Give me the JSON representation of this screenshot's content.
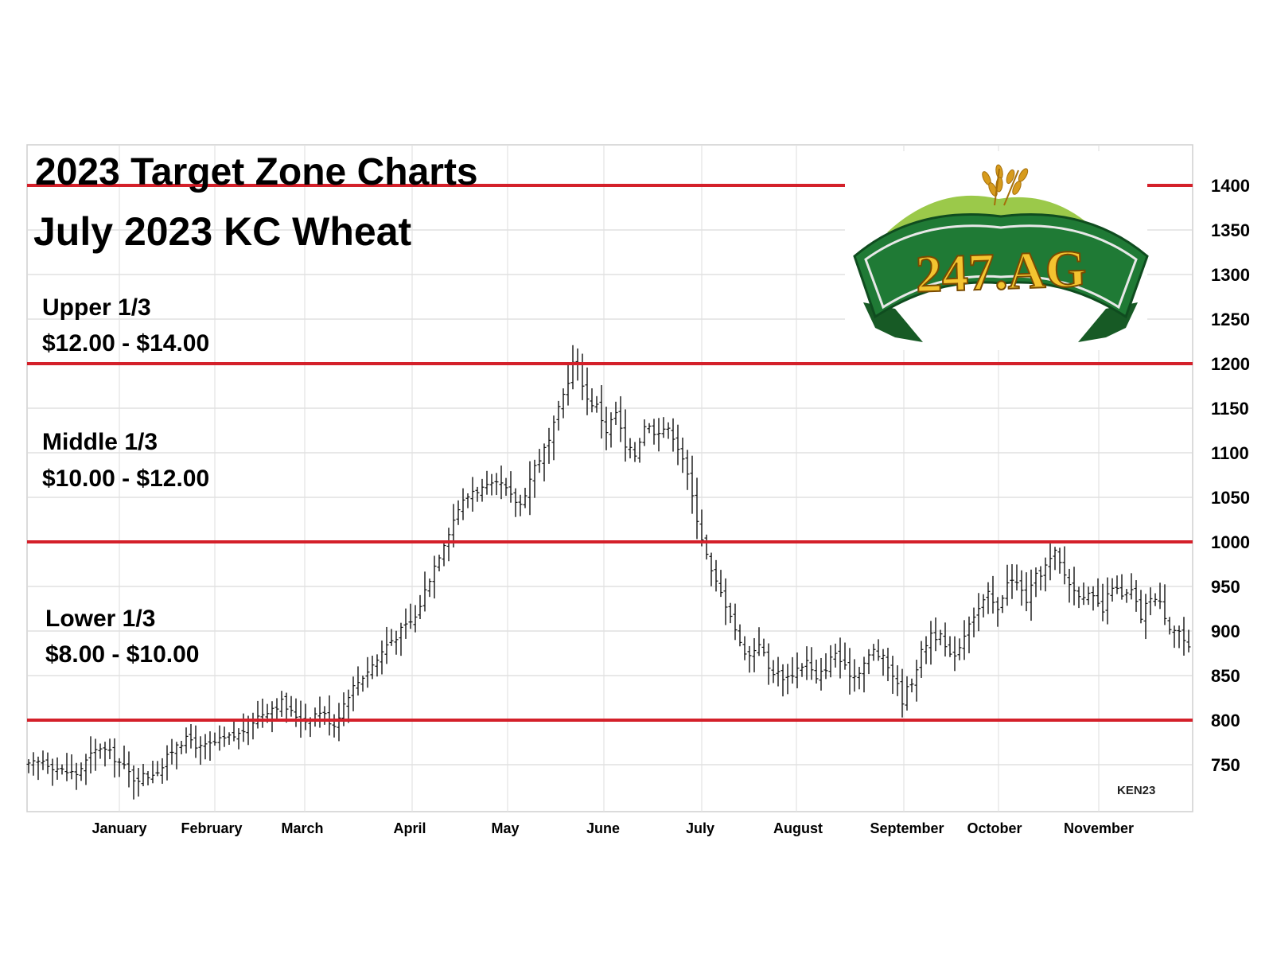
{
  "chart_data": {
    "type": "ohlc",
    "title": "2023 Target Zone Charts",
    "subtitle": "July 2023 KC Wheat",
    "ylim": [
      700,
      1470
    ],
    "yticks": [
      750,
      800,
      850,
      900,
      950,
      1000,
      1050,
      1100,
      1150,
      1200,
      1250,
      1300,
      1350,
      1400
    ],
    "x_months": [
      "January",
      "February",
      "March",
      "April",
      "May",
      "June",
      "July",
      "August",
      "September",
      "October",
      "November"
    ],
    "grid": true,
    "zone_lines": [
      800,
      1000,
      1200,
      1400
    ],
    "zones": [
      {
        "name": "Upper 1/3",
        "range": "$12.00 - $14.00"
      },
      {
        "name": "Middle 1/3",
        "range": "$10.00 - $12.00"
      },
      {
        "name": "Lower 1/3",
        "range": "$8.00 - $10.00"
      }
    ],
    "price_anchors": [
      [
        0,
        748
      ],
      [
        3,
        755
      ],
      [
        7,
        743
      ],
      [
        10,
        740
      ],
      [
        13,
        760
      ],
      [
        15,
        770
      ],
      [
        18,
        758
      ],
      [
        22,
        735
      ],
      [
        25,
        738
      ],
      [
        28,
        748
      ],
      [
        31,
        775
      ],
      [
        34,
        778
      ],
      [
        36,
        768
      ],
      [
        40,
        776
      ],
      [
        44,
        784
      ],
      [
        47,
        800
      ],
      [
        50,
        812
      ],
      [
        53,
        820
      ],
      [
        55,
        808
      ],
      [
        58,
        800
      ],
      [
        61,
        810
      ],
      [
        64,
        795
      ],
      [
        67,
        830
      ],
      [
        70,
        850
      ],
      [
        73,
        868
      ],
      [
        75,
        885
      ],
      [
        78,
        900
      ],
      [
        81,
        915
      ],
      [
        84,
        960
      ],
      [
        87,
        1000
      ],
      [
        90,
        1038
      ],
      [
        93,
        1058
      ],
      [
        96,
        1060
      ],
      [
        99,
        1064
      ],
      [
        101,
        1050
      ],
      [
        103,
        1042
      ],
      [
        106,
        1085
      ],
      [
        109,
        1112
      ],
      [
        112,
        1165
      ],
      [
        114,
        1200
      ],
      [
        115,
        1198
      ],
      [
        117,
        1160
      ],
      [
        119,
        1152
      ],
      [
        121,
        1125
      ],
      [
        123,
        1145
      ],
      [
        125,
        1105
      ],
      [
        127,
        1098
      ],
      [
        129,
        1132
      ],
      [
        131,
        1125
      ],
      [
        133,
        1128
      ],
      [
        135,
        1120
      ],
      [
        137,
        1095
      ],
      [
        139,
        1050
      ],
      [
        141,
        1005
      ],
      [
        143,
        965
      ],
      [
        145,
        942
      ],
      [
        147,
        920
      ],
      [
        149,
        885
      ],
      [
        151,
        872
      ],
      [
        153,
        888
      ],
      [
        155,
        858
      ],
      [
        157,
        852
      ],
      [
        159,
        848
      ],
      [
        161,
        858
      ],
      [
        163,
        866
      ],
      [
        165,
        844
      ],
      [
        167,
        860
      ],
      [
        169,
        876
      ],
      [
        171,
        857
      ],
      [
        173,
        850
      ],
      [
        175,
        864
      ],
      [
        177,
        878
      ],
      [
        179,
        868
      ],
      [
        181,
        852
      ],
      [
        183,
        823
      ],
      [
        185,
        845
      ],
      [
        187,
        875
      ],
      [
        189,
        898
      ],
      [
        191,
        892
      ],
      [
        193,
        870
      ],
      [
        195,
        883
      ],
      [
        197,
        912
      ],
      [
        199,
        925
      ],
      [
        201,
        940
      ],
      [
        203,
        922
      ],
      [
        205,
        958
      ],
      [
        207,
        953
      ],
      [
        209,
        935
      ],
      [
        211,
        960
      ],
      [
        213,
        972
      ],
      [
        215,
        987
      ],
      [
        217,
        963
      ],
      [
        219,
        945
      ],
      [
        221,
        942
      ],
      [
        223,
        935
      ],
      [
        225,
        922
      ],
      [
        227,
        952
      ],
      [
        229,
        937
      ],
      [
        231,
        944
      ],
      [
        233,
        915
      ],
      [
        235,
        940
      ],
      [
        237,
        930
      ],
      [
        239,
        906
      ],
      [
        241,
        900
      ],
      [
        243,
        878
      ]
    ],
    "logo": {
      "text": "247.AG",
      "colors": [
        "#1f6e2f",
        "#f4c430",
        "#8cc63f"
      ]
    },
    "stamp": "KEN23"
  }
}
